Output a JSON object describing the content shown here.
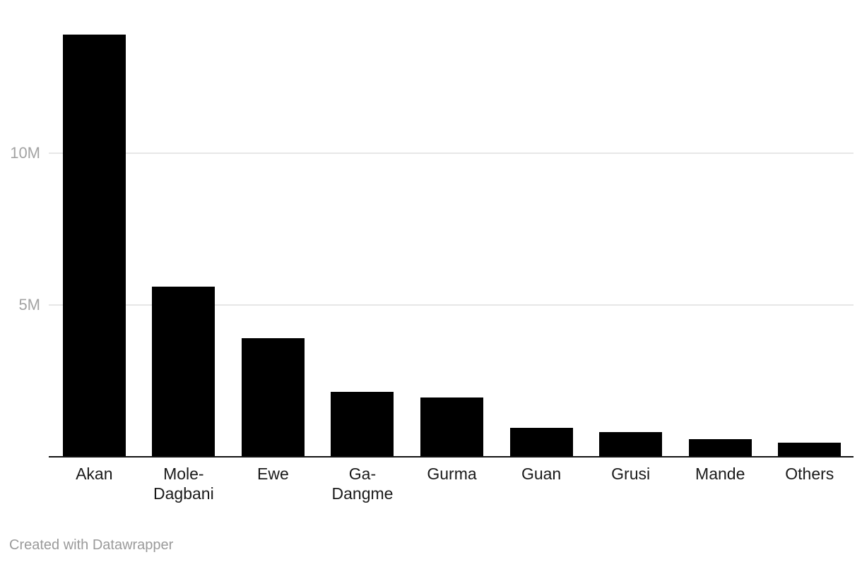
{
  "chart_data": {
    "type": "bar",
    "title": "",
    "categories": [
      "Akan",
      "Mole-Dagbani",
      "Ewe",
      "Ga-Dangme",
      "Gurma",
      "Guan",
      "Grusi",
      "Mande",
      "Others"
    ],
    "tick_labels": [
      "Akan",
      "Mole-\nDagbani",
      "Ewe",
      "Ga-\nDangme",
      "Gurma",
      "Guan",
      "Grusi",
      "Mande",
      "Others"
    ],
    "values_millions": [
      13.9,
      5.6,
      3.9,
      2.15,
      1.95,
      0.95,
      0.82,
      0.58,
      0.47
    ],
    "unit": "M",
    "xlabel": "",
    "ylabel": "",
    "ylim": [
      0,
      14.5
    ],
    "yticks": [
      {
        "value": 5,
        "label": "5M"
      },
      {
        "value": 10,
        "label": "10M"
      }
    ],
    "grid": "horizontal",
    "legend": "none",
    "bar_color": "#000000",
    "gridline_color": "#e7e7e7",
    "axis_line_color": "#131313",
    "ytick_color": "#a3a3a3",
    "xlabel_color": "#1a1a1a"
  },
  "footer": {
    "attribution": "Created with Datawrapper",
    "color": "#9a9a9a"
  }
}
